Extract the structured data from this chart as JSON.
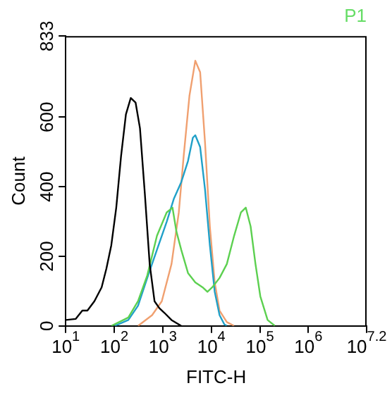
{
  "chart_data": {
    "type": "line",
    "title": "P1",
    "xlabel": "FITC-H",
    "ylabel": "Count",
    "log": "x",
    "xlim": [
      10,
      15848932
    ],
    "ylim": [
      0,
      833
    ],
    "xticks": [
      {
        "value": 10,
        "label": "10$^{1}$"
      },
      {
        "value": 100,
        "label": "10$^{2}$"
      },
      {
        "value": 1000,
        "label": "10$^{3}$"
      },
      {
        "value": 10000,
        "label": "10$^{4}$"
      },
      {
        "value": 100000,
        "label": "10$^{5}$"
      },
      {
        "value": 1000000,
        "label": "10$^{6}$"
      },
      {
        "value": 15848932,
        "label": "10$^{7.2}$"
      }
    ],
    "yticks": [
      0,
      200,
      400,
      600,
      833
    ],
    "grid": false,
    "legend": false,
    "marker": "none",
    "line_style": "solid",
    "series": [
      {
        "color": "#000000",
        "x": [
          10,
          16,
          22,
          28,
          39,
          55,
          69,
          87,
          110,
          138,
          174,
          219,
          275,
          339,
          427,
          537,
          676,
          851,
          1072,
          1514,
          2399
        ],
        "values": [
          17,
          20,
          44,
          44,
          71,
          111,
          165,
          232,
          340,
          487,
          608,
          655,
          642,
          568,
          380,
          178,
          71,
          51,
          38,
          17,
          0
        ]
      },
      {
        "color": "#5cd050",
        "x": [
          87,
          195,
          309,
          479,
          759,
          1202,
          1585,
          1905,
          2399,
          3311,
          4677,
          6607,
          8318,
          10471,
          14791,
          20893,
          29512,
          40738,
          51286,
          64565,
          81283,
          102329,
          144544,
          204174
        ],
        "values": [
          0,
          24,
          71,
          145,
          259,
          326,
          340,
          272,
          219,
          152,
          125,
          111,
          98,
          111,
          138,
          178,
          259,
          326,
          340,
          286,
          178,
          85,
          17,
          0
        ]
      },
      {
        "color": "#20a0c8",
        "x": [
          102,
          195,
          309,
          479,
          759,
          1202,
          1698,
          2399,
          3311,
          4169,
          4677,
          5888,
          7413,
          9333,
          11749,
          14791,
          18621,
          20893
        ],
        "values": [
          0,
          17,
          58,
          138,
          219,
          299,
          366,
          413,
          474,
          541,
          548,
          514,
          393,
          232,
          98,
          31,
          4,
          0
        ]
      },
      {
        "color": "#f0a070",
        "x": [
          309,
          603,
          955,
          1514,
          2138,
          2692,
          3548,
          4677,
          5888,
          7413,
          9333,
          11749,
          14791,
          20893,
          29512
        ],
        "values": [
          0,
          31,
          71,
          178,
          326,
          487,
          662,
          762,
          729,
          528,
          286,
          125,
          44,
          11,
          0
        ]
      }
    ]
  }
}
